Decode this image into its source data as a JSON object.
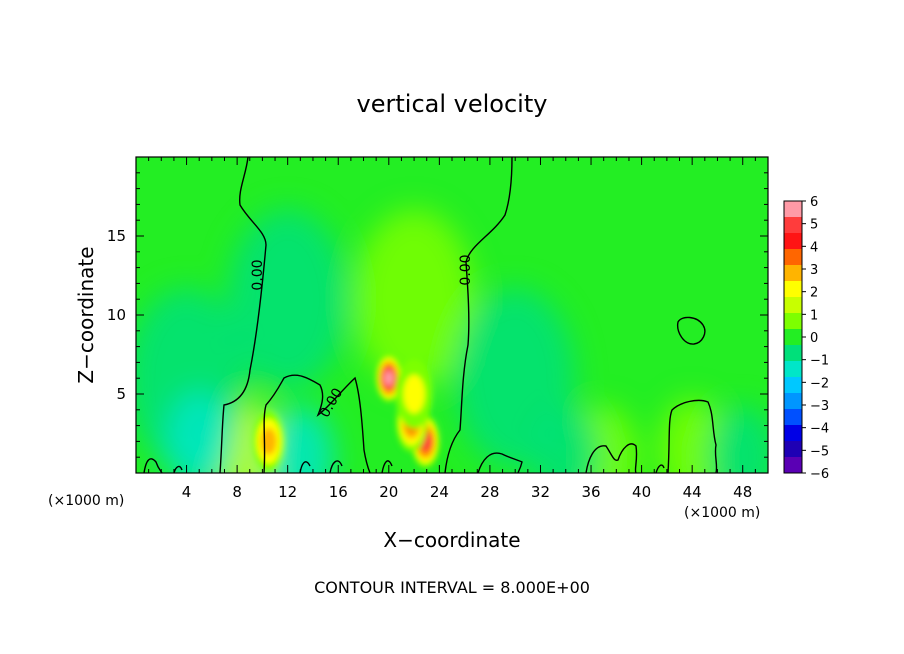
{
  "chart_data": {
    "type": "heatmap",
    "title": "vertical velocity",
    "xlabel": "X−coordinate",
    "ylabel": "Z−coordinate",
    "x_units": "(×1000 m)",
    "z_units": "(×1000 m)",
    "footer": "CONTOUR INTERVAL = 8.000E+00",
    "xlim": [
      0,
      50
    ],
    "ylim": [
      0,
      20
    ],
    "x_ticks": [
      4,
      8,
      12,
      16,
      20,
      24,
      28,
      32,
      36,
      40,
      44,
      48
    ],
    "y_ticks": [
      5,
      10,
      15
    ],
    "contour_label": "0.00",
    "colorbar": {
      "ticks": [
        "6",
        "5",
        "4",
        "3",
        "2",
        "1",
        "0",
        "−1",
        "−2",
        "−3",
        "−4",
        "−5",
        "−6"
      ],
      "colors": [
        "#ff9aa6",
        "#ff3c3c",
        "#ff1414",
        "#ff6600",
        "#ffb400",
        "#ffff00",
        "#c8ff00",
        "#7dff00",
        "#23ee23",
        "#00e07a",
        "#00e6c8",
        "#00c8ff",
        "#0096ff",
        "#0050ff",
        "#0000e6",
        "#1e00b4",
        "#5a00b4"
      ]
    },
    "features": [
      {
        "x": 20.0,
        "z": 6.0,
        "value": 6.0
      },
      {
        "x": 22.9,
        "z": 2.0,
        "value": 5.0
      },
      {
        "x": 21.8,
        "z": 3.2,
        "value": 4.0
      },
      {
        "x": 10.5,
        "z": 2.0,
        "value": 3.0
      },
      {
        "x": 22.0,
        "z": 5.0,
        "value": 2.0
      },
      {
        "x": 8.5,
        "z": 1.5,
        "value": 1.5
      },
      {
        "x": 44.0,
        "z": 1.5,
        "value": 1.0
      },
      {
        "x": 37.0,
        "z": 1.0,
        "value": 1.0
      },
      {
        "x": 22.0,
        "z": 11.0,
        "value": 0.6
      },
      {
        "x": 4.0,
        "z": 6.0,
        "value": -0.8
      },
      {
        "x": 30.0,
        "z": 6.0,
        "value": -0.8
      },
      {
        "x": 12.0,
        "z": 11.0,
        "value": -0.5
      },
      {
        "x": 5.0,
        "z": 2.0,
        "value": -1.5
      },
      {
        "x": 13.0,
        "z": 1.0,
        "value": -1.5
      },
      {
        "x": 34.0,
        "z": 1.0,
        "value": -1.2
      },
      {
        "x": 48.0,
        "z": 1.0,
        "value": -1.2
      }
    ]
  }
}
